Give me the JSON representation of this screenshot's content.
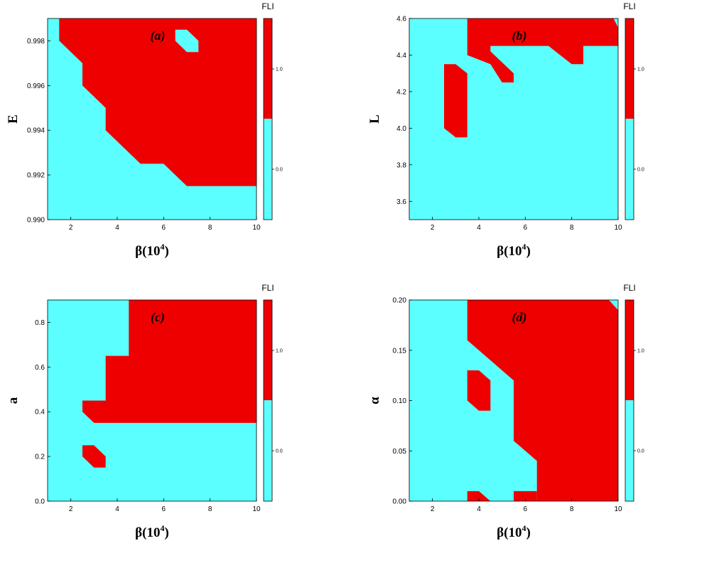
{
  "colors": {
    "chaotic": "#ee0000",
    "regular": "#5bffff",
    "axis": "#000000"
  },
  "chart_data": [
    {
      "type": "heatmap",
      "panel_label": "(a)",
      "xlabel": "β(10",
      "xlabel_sup": "4",
      "xlabel_close": ")",
      "ylabel": "E",
      "xlim": [
        1,
        10
      ],
      "ylim": [
        0.99,
        0.999
      ],
      "xticks": [
        2,
        4,
        6,
        8,
        10
      ],
      "xtick_labels": [
        "2",
        "4",
        "6",
        "8",
        "10"
      ],
      "yticks": [
        0.99,
        0.992,
        0.994,
        0.996,
        0.998
      ],
      "ytick_labels": [
        "0.990",
        "0.992",
        "0.994",
        "0.996",
        "0.998"
      ],
      "colorbar": {
        "title": "FLI",
        "tick_labels": [
          "1.0",
          "0.0"
        ],
        "levels": [
          1.0,
          0.0
        ]
      },
      "regions": [
        {
          "state": "chaotic",
          "label": "FLI = 1",
          "polygon": [
            [
              1.5,
              0.999
            ],
            [
              10,
              0.999
            ],
            [
              10,
              0.9945
            ],
            [
              9.5,
              0.995
            ],
            [
              9.5,
              0.9955
            ],
            [
              10,
              0.9955
            ],
            [
              10,
              0.9915
            ],
            [
              7,
              0.9915
            ],
            [
              6,
              0.9925
            ],
            [
              5,
              0.9925
            ],
            [
              3.5,
              0.994
            ],
            [
              3.5,
              0.995
            ],
            [
              2.5,
              0.996
            ],
            [
              2.5,
              0.997
            ],
            [
              1.5,
              0.998
            ]
          ]
        },
        {
          "state": "regular",
          "label": "FLI = 0",
          "polygon": [
            [
              6.5,
              0.9985
            ],
            [
              7,
              0.9985
            ],
            [
              7.5,
              0.998
            ],
            [
              7.5,
              0.9975
            ],
            [
              7,
              0.9975
            ],
            [
              6.5,
              0.998
            ]
          ]
        }
      ]
    },
    {
      "type": "heatmap",
      "panel_label": "(b)",
      "xlabel": "β(10",
      "xlabel_sup": "4",
      "xlabel_close": ")",
      "ylabel": "L",
      "xlim": [
        1,
        10
      ],
      "ylim": [
        3.5,
        4.6
      ],
      "xticks": [
        2,
        4,
        6,
        8,
        10
      ],
      "xtick_labels": [
        "2",
        "4",
        "6",
        "8",
        "10"
      ],
      "yticks": [
        3.6,
        3.8,
        4.0,
        4.2,
        4.4,
        4.6
      ],
      "ytick_labels": [
        "3.6",
        "3.8",
        "4.0",
        "4.2",
        "4.4",
        "4.6"
      ],
      "colorbar": {
        "title": "FLI",
        "tick_labels": [
          "1.0",
          "0.0"
        ],
        "levels": [
          1.0,
          0.0
        ]
      },
      "regions": [
        {
          "state": "chaotic",
          "label": "FLI = 1",
          "polygon": [
            [
              3.5,
              4.6
            ],
            [
              9.8,
              4.6
            ],
            [
              10,
              4.55
            ],
            [
              10,
              4.45
            ],
            [
              8.5,
              4.45
            ],
            [
              8.5,
              4.35
            ],
            [
              8,
              4.35
            ],
            [
              7,
              4.45
            ],
            [
              4.5,
              4.45
            ],
            [
              4.5,
              4.42
            ],
            [
              5.5,
              4.3
            ],
            [
              5.5,
              4.25
            ],
            [
              5,
              4.25
            ],
            [
              4.5,
              4.35
            ],
            [
              3.5,
              4.4
            ]
          ]
        },
        {
          "state": "chaotic",
          "label": "FLI = 1",
          "polygon": [
            [
              2.5,
              4.35
            ],
            [
              3,
              4.35
            ],
            [
              3.5,
              4.3
            ],
            [
              3.5,
              3.95
            ],
            [
              3,
              3.95
            ],
            [
              2.5,
              4.0
            ]
          ]
        }
      ]
    },
    {
      "type": "heatmap",
      "panel_label": "(c)",
      "xlabel": "β(10",
      "xlabel_sup": "4",
      "xlabel_close": ")",
      "ylabel": "a",
      "xlim": [
        1,
        10
      ],
      "ylim": [
        0.0,
        0.9
      ],
      "xticks": [
        2,
        4,
        6,
        8,
        10
      ],
      "xtick_labels": [
        "2",
        "4",
        "6",
        "8",
        "10"
      ],
      "yticks": [
        0.0,
        0.2,
        0.4,
        0.6,
        0.8
      ],
      "ytick_labels": [
        "0.0",
        "0.2",
        "0.4",
        "0.6",
        "0.8"
      ],
      "colorbar": {
        "title": "FLI",
        "tick_labels": [
          "1.0",
          "0.0"
        ],
        "levels": [
          1.0,
          0.0
        ]
      },
      "regions": [
        {
          "state": "chaotic",
          "label": "FLI = 1",
          "polygon": [
            [
              4.5,
              0.9
            ],
            [
              10,
              0.9
            ],
            [
              10,
              0.45
            ],
            [
              9.5,
              0.5
            ],
            [
              9.5,
              0.55
            ],
            [
              10,
              0.55
            ],
            [
              10,
              0.35
            ],
            [
              3,
              0.35
            ],
            [
              2.5,
              0.4
            ],
            [
              2.5,
              0.45
            ],
            [
              3.5,
              0.45
            ],
            [
              3.5,
              0.65
            ],
            [
              4.5,
              0.65
            ]
          ]
        },
        {
          "state": "chaotic",
          "label": "FLI = 1",
          "polygon": [
            [
              2.5,
              0.25
            ],
            [
              3,
              0.25
            ],
            [
              3.5,
              0.2
            ],
            [
              3.5,
              0.15
            ],
            [
              3,
              0.15
            ],
            [
              2.5,
              0.2
            ]
          ]
        }
      ]
    },
    {
      "type": "heatmap",
      "panel_label": "(d)",
      "xlabel": "β(10",
      "xlabel_sup": "4",
      "xlabel_close": ")",
      "ylabel": "α",
      "xlim": [
        1,
        10
      ],
      "ylim": [
        0.0,
        0.2
      ],
      "xticks": [
        2,
        4,
        6,
        8,
        10
      ],
      "xtick_labels": [
        "2",
        "4",
        "6",
        "8",
        "10"
      ],
      "yticks": [
        0.0,
        0.05,
        0.1,
        0.15,
        0.2
      ],
      "ytick_labels": [
        "0.00",
        "0.05",
        "0.10",
        "0.15",
        "0.20"
      ],
      "colorbar": {
        "title": "FLI",
        "tick_labels": [
          "1.0",
          "0.0"
        ],
        "levels": [
          1.0,
          0.0
        ]
      },
      "regions": [
        {
          "state": "chaotic",
          "label": "FLI = 1",
          "polygon": [
            [
              3.5,
              0.2
            ],
            [
              9.6,
              0.2
            ],
            [
              10,
              0.19
            ],
            [
              10,
              0.0
            ],
            [
              6.5,
              0.0
            ],
            [
              6.5,
              0.04
            ],
            [
              5.5,
              0.06
            ],
            [
              5.5,
              0.12
            ],
            [
              3.5,
              0.16
            ]
          ]
        },
        {
          "state": "chaotic",
          "label": "FLI = 1",
          "polygon": [
            [
              3.5,
              0.13
            ],
            [
              4,
              0.13
            ],
            [
              4.5,
              0.12
            ],
            [
              4.5,
              0.09
            ],
            [
              4,
              0.09
            ],
            [
              3.5,
              0.1
            ]
          ]
        },
        {
          "state": "chaotic",
          "label": "FLI = 1",
          "polygon": [
            [
              3.5,
              0.01
            ],
            [
              4,
              0.01
            ],
            [
              4.5,
              0.0
            ],
            [
              3.5,
              0.0
            ]
          ]
        },
        {
          "state": "chaotic",
          "label": "FLI = 1",
          "polygon": [
            [
              5.5,
              0.01
            ],
            [
              6.5,
              0.01
            ],
            [
              6.5,
              0.0
            ],
            [
              5.5,
              0.0
            ]
          ]
        }
      ]
    }
  ]
}
